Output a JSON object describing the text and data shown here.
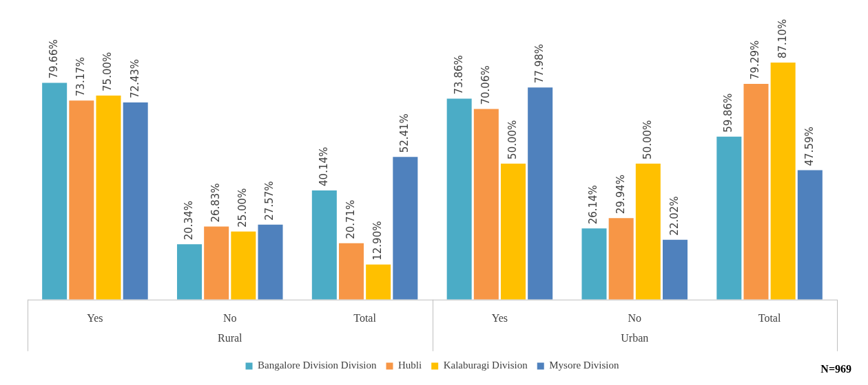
{
  "chart_data": {
    "type": "bar",
    "categories": [
      "Yes",
      "No",
      "Total",
      "Yes",
      "No",
      "Total"
    ],
    "series": [
      {
        "name": "Bangalore Division Division",
        "color": "#4bacc6",
        "values": [
          79.66,
          20.34,
          40.14,
          73.86,
          26.14,
          59.86
        ],
        "value_labels": [
          "79.66%",
          "20.34%",
          "40.14%",
          "73.86%",
          "26.14%",
          "59.86%"
        ]
      },
      {
        "name": "Hubli",
        "color": "#f79646",
        "values": [
          73.17,
          26.83,
          20.71,
          70.06,
          29.94,
          79.29
        ],
        "value_labels": [
          "73.17%",
          "26.83%",
          "20.71%",
          "70.06%",
          "29.94%",
          "79.29%"
        ]
      },
      {
        "name": "Kalaburagi Division",
        "color": "#ffc000",
        "values": [
          75.0,
          25.0,
          12.9,
          50.0,
          50.0,
          87.1
        ],
        "value_labels": [
          "75.00%",
          "25.00%",
          "12.90%",
          "50.00%",
          "50.00%",
          "87.10%"
        ]
      },
      {
        "name": "Mysore Division",
        "color": "#4f81bd",
        "values": [
          72.43,
          27.57,
          52.41,
          77.98,
          22.02,
          47.59
        ],
        "value_labels": [
          "72.43%",
          "27.57%",
          "52.41%",
          "77.98%",
          "22.02%",
          "47.59%"
        ]
      }
    ],
    "grid": false,
    "legend": "bottom",
    "tick_labels": "x",
    "annotations": [
      "Rural",
      "Urban",
      "N=969"
    ]
  }
}
